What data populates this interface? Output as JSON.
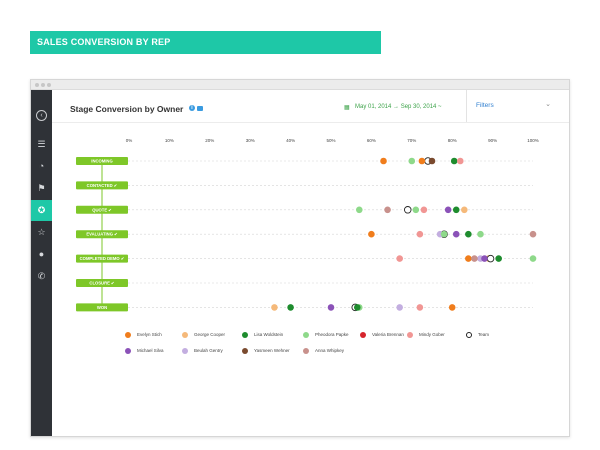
{
  "banner": {
    "title": "SALES CONVERSION BY REP"
  },
  "header": {
    "title": "Stage Conversion by Owner",
    "date_range": "May 01, 2014 → Sep 30, 2014 ~",
    "filters_label": "Filters"
  },
  "sidebar": {
    "icons": [
      "back-arrow-icon",
      "sort-icon",
      "gauge-icon",
      "flag-icon",
      "lightbulb-icon",
      "star-icon",
      "circle-icon",
      "phone-icon"
    ],
    "active": "lightbulb-icon"
  },
  "chart_data": {
    "type": "scatter",
    "title": "Stage Conversion by Owner",
    "x_ticks": [
      "0%",
      "10%",
      "20%",
      "30%",
      "40%",
      "50%",
      "60%",
      "70%",
      "80%",
      "90%",
      "100%"
    ],
    "xlim": [
      0,
      100
    ],
    "stages": [
      "INCOMING",
      "CONTACTED",
      "QUOTE",
      "EVALUATING",
      "COMPLETED DEMO",
      "CLOSURE",
      "WON"
    ],
    "legend": [
      {
        "name": "Evelyn Stich",
        "color": "#f07d1c"
      },
      {
        "name": "George Cooper",
        "color": "#f5b97a"
      },
      {
        "name": "Lisa Woldstein",
        "color": "#1e8c2e"
      },
      {
        "name": "Pheodora Papke",
        "color": "#8ed98a"
      },
      {
        "name": "Valeria Brennan",
        "color": "#d6242c"
      },
      {
        "name": "Mindy Gober",
        "color": "#f19694"
      },
      {
        "name": "Team",
        "color": "#ffffff"
      },
      {
        "name": "Michael Silva",
        "color": "#8b52b8"
      },
      {
        "name": "Beulah Gentry",
        "color": "#c3aee0"
      },
      {
        "name": "Yasmeen Wehner",
        "color": "#7a4a2e"
      },
      {
        "name": "Anna Whipkey",
        "color": "#c8918c"
      }
    ],
    "series": [
      {
        "name": "Evelyn Stich",
        "color": "#f07d1c",
        "values": [
          63,
          null,
          null,
          60,
          null,
          null,
          null
        ]
      },
      {
        "name": "George Cooper",
        "color": "#f5b97a",
        "values": [
          null,
          null,
          83,
          null,
          89,
          null,
          null
        ]
      },
      {
        "name": "Lisa Woldstein",
        "color": "#1e8c2e",
        "values": [
          80.5,
          null,
          81,
          null,
          91.5,
          null,
          40
        ]
      },
      {
        "name": "Pheodora Papke",
        "color": "#8ed98a",
        "values": [
          70,
          null,
          57,
          null,
          100,
          null,
          57
        ]
      },
      {
        "name": "Valeria Brennan",
        "color": "#d6242c",
        "values": [
          null,
          null,
          null,
          null,
          null,
          null,
          null
        ]
      },
      {
        "name": "Mindy Gober",
        "color": "#f19694",
        "values": [
          82,
          null,
          73,
          72,
          67,
          null,
          72
        ]
      },
      {
        "name": "Team",
        "color": "#ffffff",
        "values": [
          74,
          null,
          69,
          78,
          89.5,
          null,
          56
        ]
      },
      {
        "name": "Michael Silva",
        "color": "#8b52b8",
        "values": [
          null,
          null,
          null,
          81,
          null,
          null,
          50
        ]
      },
      {
        "name": "Beulah Gentry",
        "color": "#c3aee0",
        "values": [
          null,
          null,
          null,
          77,
          87,
          null,
          67
        ]
      },
      {
        "name": "Yasmeen Wehner",
        "color": "#7a4a2e",
        "values": [
          75,
          null,
          null,
          null,
          null,
          null,
          null
        ]
      },
      {
        "name": "Anna Whipkey",
        "color": "#c8918c",
        "values": [
          null,
          null,
          64,
          null,
          null,
          null,
          null
        ]
      }
    ],
    "extra_points": [
      {
        "stage": "INCOMING",
        "x": 72.5,
        "color": "#f07d1c"
      },
      {
        "stage": "QUOTE",
        "x": 71,
        "color": "#8ed98a"
      },
      {
        "stage": "QUOTE",
        "x": 79,
        "color": "#8b52b8"
      },
      {
        "stage": "EVALUATING",
        "x": 78,
        "color": "#8ed98a"
      },
      {
        "stage": "EVALUATING",
        "x": 87,
        "color": "#8ed98a"
      },
      {
        "stage": "EVALUATING",
        "x": 84,
        "color": "#1e8c2e"
      },
      {
        "stage": "EVALUATING",
        "x": 100,
        "color": "#c8918c"
      },
      {
        "stage": "COMPLETED DEMO",
        "x": 84,
        "color": "#f07d1c"
      },
      {
        "stage": "COMPLETED DEMO",
        "x": 85.5,
        "color": "#c8918c"
      },
      {
        "stage": "COMPLETED DEMO",
        "x": 88,
        "color": "#8b52b8"
      },
      {
        "stage": "WON",
        "x": 36,
        "color": "#f5b97a"
      },
      {
        "stage": "WON",
        "x": 56.5,
        "color": "#1e8c2e"
      },
      {
        "stage": "WON",
        "x": 80,
        "color": "#f07d1c"
      }
    ],
    "grid": "dashed horizontal",
    "legend_position": "bottom-left"
  }
}
